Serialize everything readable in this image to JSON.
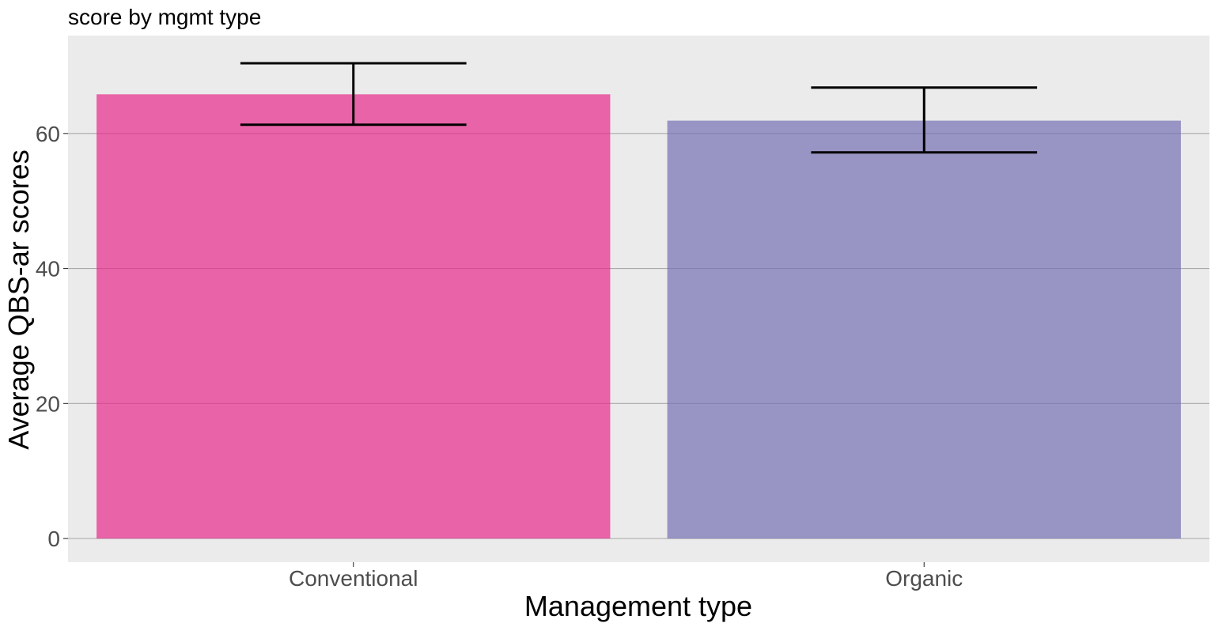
{
  "chart_data": {
    "type": "bar",
    "title": "score by mgmt type",
    "xlabel": "Management type",
    "ylabel": "Average QBS-ar scores",
    "categories": [
      "Conventional",
      "Organic"
    ],
    "values": [
      65.8,
      61.9
    ],
    "error_bars": [
      {
        "lower": 61.3,
        "upper": 70.4
      },
      {
        "lower": 57.2,
        "upper": 66.8
      }
    ],
    "bar_colors": [
      "#e7298a",
      "#7570b3"
    ],
    "bar_opacity": 0.7,
    "ylim": [
      -3.5,
      74.5
    ],
    "yticks": [
      0,
      20,
      40,
      60
    ],
    "ytick_labels": [
      "0",
      "20",
      "40",
      "60"
    ],
    "grid": true,
    "legend": "none",
    "panel_background": "#ebebeb",
    "grid_color": "#a9a9a9",
    "errorbar_color": "#000000"
  }
}
